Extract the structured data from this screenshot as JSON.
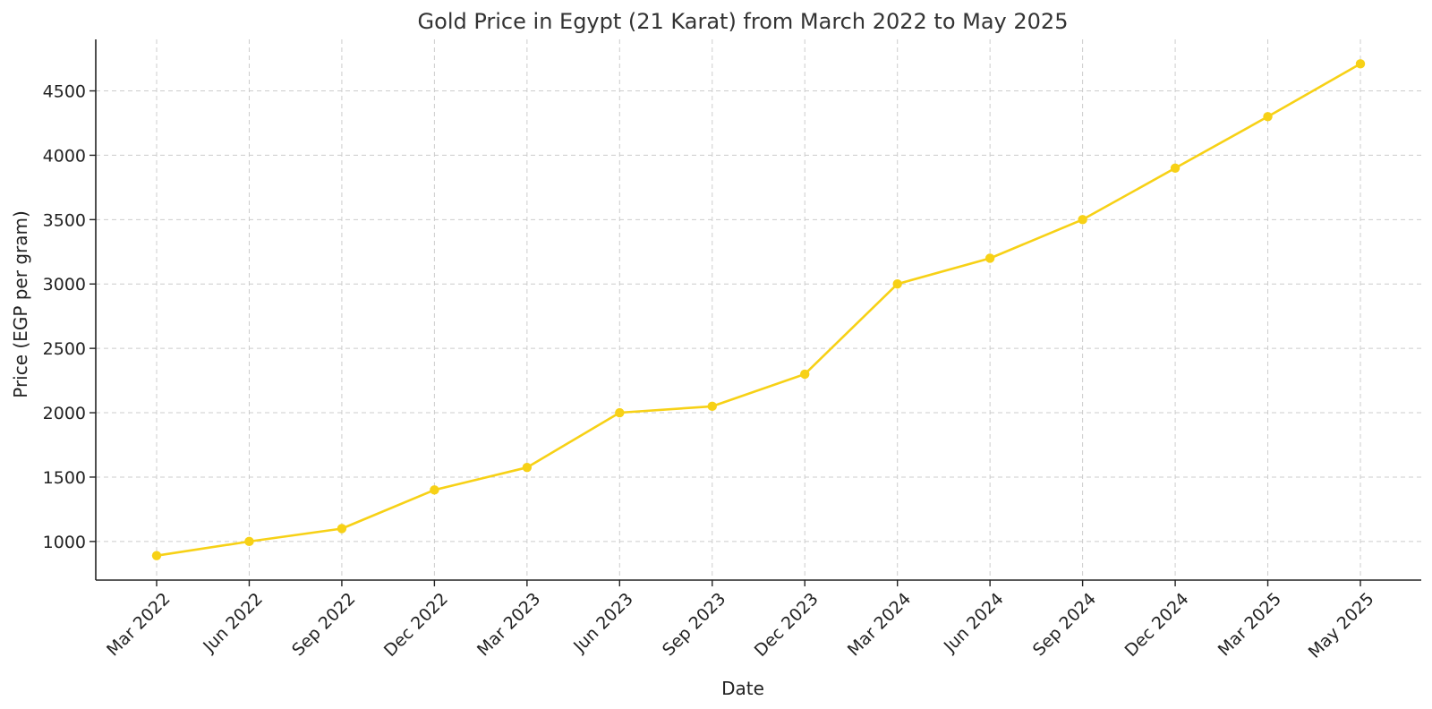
{
  "chart_data": {
    "type": "line",
    "title": "Gold Price in Egypt (21 Karat) from March 2022 to May 2025",
    "xlabel": "Date",
    "ylabel": "Price (EGP per gram)",
    "categories": [
      "Mar 2022",
      "Jun 2022",
      "Sep 2022",
      "Dec 2022",
      "Mar 2023",
      "Jun 2023",
      "Sep 2023",
      "Dec 2023",
      "Mar 2024",
      "Jun 2024",
      "Sep 2024",
      "Dec 2024",
      "Mar 2025",
      "May 2025"
    ],
    "series": [
      {
        "values": [
          890,
          1000,
          1100,
          1400,
          1575,
          2000,
          2050,
          2300,
          3000,
          3200,
          3500,
          3900,
          4300,
          4710
        ]
      }
    ],
    "ylim": [
      700,
      4900
    ],
    "yticks": [
      1000,
      1500,
      2000,
      2500,
      3000,
      3500,
      4000,
      4500
    ],
    "grid": true,
    "legend": "none",
    "color": "#F7D116"
  }
}
